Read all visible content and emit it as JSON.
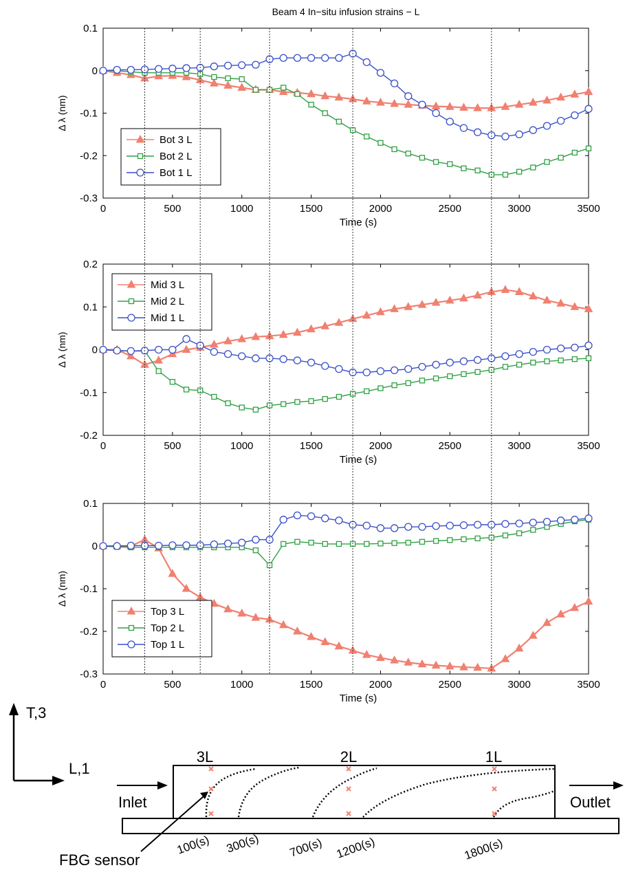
{
  "figure_title": "Beam 4 In−situ infusion strains − L",
  "colors": {
    "red": "#f08070",
    "green": "#2ea043",
    "blue": "#3a4fc8",
    "vline": "#333333"
  },
  "vlines": [
    300,
    700,
    1200,
    1800,
    2800
  ],
  "chart_data": [
    {
      "type": "line",
      "ylabel": "Δ λ (nm)",
      "xlabel": "Time (s)",
      "xlim": [
        0,
        3500
      ],
      "ylim": [
        -0.3,
        0.1
      ],
      "xticks": [
        0,
        500,
        1000,
        1500,
        2000,
        2500,
        3000,
        3500
      ],
      "yticks": [
        -0.3,
        -0.2,
        -0.1,
        0,
        0.1
      ],
      "legend_position": "left",
      "x": [
        0,
        100,
        200,
        300,
        400,
        500,
        600,
        700,
        800,
        900,
        1000,
        1100,
        1200,
        1300,
        1400,
        1500,
        1600,
        1700,
        1800,
        1900,
        2000,
        2100,
        2200,
        2300,
        2400,
        2500,
        2600,
        2700,
        2800,
        2900,
        3000,
        3100,
        3200,
        3300,
        3400,
        3500
      ],
      "series": [
        {
          "name": "Bot 3 L",
          "color": "red",
          "marker": "triangle",
          "values": [
            0,
            -0.005,
            -0.01,
            -0.018,
            -0.013,
            -0.012,
            -0.015,
            -0.022,
            -0.03,
            -0.035,
            -0.04,
            -0.045,
            -0.045,
            -0.05,
            -0.052,
            -0.055,
            -0.06,
            -0.063,
            -0.067,
            -0.072,
            -0.075,
            -0.078,
            -0.08,
            -0.082,
            -0.084,
            -0.085,
            -0.087,
            -0.088,
            -0.088,
            -0.085,
            -0.08,
            -0.075,
            -0.07,
            -0.063,
            -0.056,
            -0.05
          ]
        },
        {
          "name": "Bot 2 L",
          "color": "green",
          "marker": "square",
          "values": [
            0,
            0,
            -0.003,
            -0.005,
            -0.005,
            -0.005,
            -0.005,
            -0.008,
            -0.015,
            -0.018,
            -0.02,
            -0.045,
            -0.045,
            -0.04,
            -0.055,
            -0.08,
            -0.1,
            -0.12,
            -0.14,
            -0.155,
            -0.17,
            -0.185,
            -0.195,
            -0.205,
            -0.215,
            -0.22,
            -0.23,
            -0.235,
            -0.245,
            -0.245,
            -0.238,
            -0.228,
            -0.215,
            -0.205,
            -0.193,
            -0.183
          ]
        },
        {
          "name": "Bot 1 L",
          "color": "blue",
          "marker": "circle",
          "values": [
            0,
            0.002,
            0.002,
            0.003,
            0.004,
            0.005,
            0.006,
            0.007,
            0.01,
            0.012,
            0.013,
            0.014,
            0.027,
            0.03,
            0.03,
            0.03,
            0.03,
            0.03,
            0.04,
            0.02,
            -0.005,
            -0.03,
            -0.06,
            -0.08,
            -0.1,
            -0.12,
            -0.135,
            -0.145,
            -0.152,
            -0.155,
            -0.15,
            -0.14,
            -0.13,
            -0.118,
            -0.105,
            -0.09
          ]
        }
      ]
    },
    {
      "type": "line",
      "ylabel": "Δ λ (nm)",
      "xlabel": "Time (s)",
      "xlim": [
        0,
        3500
      ],
      "ylim": [
        -0.2,
        0.2
      ],
      "xticks": [
        0,
        500,
        1000,
        1500,
        2000,
        2500,
        3000,
        3500
      ],
      "yticks": [
        -0.2,
        -0.1,
        0,
        0.1,
        0.2
      ],
      "legend_position": "top-left",
      "x": [
        0,
        100,
        200,
        300,
        400,
        500,
        600,
        700,
        800,
        900,
        1000,
        1100,
        1200,
        1300,
        1400,
        1500,
        1600,
        1700,
        1800,
        1900,
        2000,
        2100,
        2200,
        2300,
        2400,
        2500,
        2600,
        2700,
        2800,
        2900,
        3000,
        3100,
        3200,
        3300,
        3400,
        3500
      ],
      "series": [
        {
          "name": "Mid 3 L",
          "color": "red",
          "marker": "triangle",
          "values": [
            0,
            0,
            -0.015,
            -0.035,
            -0.025,
            -0.01,
            0,
            0.005,
            0.012,
            0.02,
            0.025,
            0.03,
            0.032,
            0.035,
            0.04,
            0.048,
            0.055,
            0.063,
            0.072,
            0.08,
            0.088,
            0.095,
            0.1,
            0.105,
            0.11,
            0.115,
            0.12,
            0.127,
            0.135,
            0.14,
            0.135,
            0.125,
            0.115,
            0.108,
            0.1,
            0.095
          ]
        },
        {
          "name": "Mid 2 L",
          "color": "green",
          "marker": "square",
          "values": [
            0,
            -0.002,
            -0.003,
            -0.003,
            -0.05,
            -0.075,
            -0.093,
            -0.095,
            -0.11,
            -0.125,
            -0.135,
            -0.14,
            -0.13,
            -0.127,
            -0.122,
            -0.12,
            -0.115,
            -0.11,
            -0.103,
            -0.097,
            -0.09,
            -0.083,
            -0.078,
            -0.072,
            -0.067,
            -0.062,
            -0.057,
            -0.052,
            -0.047,
            -0.04,
            -0.035,
            -0.03,
            -0.027,
            -0.025,
            -0.022,
            -0.02
          ]
        },
        {
          "name": "Mid 1 L",
          "color": "blue",
          "marker": "circle",
          "values": [
            0,
            -0.002,
            -0.003,
            -0.002,
            0,
            0,
            0.025,
            0.01,
            -0.005,
            -0.01,
            -0.015,
            -0.02,
            -0.02,
            -0.022,
            -0.025,
            -0.03,
            -0.038,
            -0.045,
            -0.053,
            -0.053,
            -0.05,
            -0.048,
            -0.045,
            -0.04,
            -0.035,
            -0.03,
            -0.027,
            -0.024,
            -0.02,
            -0.015,
            -0.01,
            -0.005,
            0,
            0.003,
            0.005,
            0.01
          ]
        }
      ]
    },
    {
      "type": "line",
      "ylabel": "Δ λ (nm)",
      "xlabel": "Time (s)",
      "xlim": [
        0,
        3500
      ],
      "ylim": [
        -0.3,
        0.1
      ],
      "xticks": [
        0,
        500,
        1000,
        1500,
        2000,
        2500,
        3000,
        3500
      ],
      "yticks": [
        -0.3,
        -0.2,
        -0.1,
        0,
        0.1
      ],
      "legend_position": "bottom-left",
      "x": [
        0,
        100,
        200,
        300,
        400,
        500,
        600,
        700,
        800,
        900,
        1000,
        1100,
        1200,
        1300,
        1400,
        1500,
        1600,
        1700,
        1800,
        1900,
        2000,
        2100,
        2200,
        2300,
        2400,
        2500,
        2600,
        2700,
        2800,
        2900,
        3000,
        3100,
        3200,
        3300,
        3400,
        3500
      ],
      "series": [
        {
          "name": "Top 3 L",
          "color": "red",
          "marker": "triangle",
          "values": [
            0,
            0,
            0,
            0.015,
            -0.005,
            -0.065,
            -0.1,
            -0.12,
            -0.135,
            -0.148,
            -0.158,
            -0.168,
            -0.172,
            -0.185,
            -0.2,
            -0.213,
            -0.225,
            -0.235,
            -0.245,
            -0.255,
            -0.262,
            -0.268,
            -0.273,
            -0.277,
            -0.28,
            -0.282,
            -0.284,
            -0.285,
            -0.287,
            -0.265,
            -0.24,
            -0.21,
            -0.18,
            -0.16,
            -0.145,
            -0.13
          ]
        },
        {
          "name": "Top 2 L",
          "color": "green",
          "marker": "square",
          "values": [
            0,
            -0.002,
            -0.003,
            -0.003,
            -0.003,
            -0.003,
            -0.003,
            -0.003,
            -0.003,
            -0.003,
            -0.003,
            -0.01,
            -0.045,
            0.005,
            0.01,
            0.008,
            0.005,
            0.005,
            0.005,
            0.005,
            0.006,
            0.007,
            0.008,
            0.01,
            0.012,
            0.014,
            0.016,
            0.018,
            0.02,
            0.025,
            0.03,
            0.038,
            0.045,
            0.052,
            0.058,
            0.062
          ]
        },
        {
          "name": "Top 1 L",
          "color": "blue",
          "marker": "circle",
          "values": [
            0,
            0,
            0.001,
            0.001,
            0.001,
            0.002,
            0.002,
            0.002,
            0.004,
            0.006,
            0.008,
            0.015,
            0.015,
            0.062,
            0.072,
            0.07,
            0.065,
            0.06,
            0.05,
            0.048,
            0.042,
            0.042,
            0.045,
            0.045,
            0.047,
            0.048,
            0.049,
            0.05,
            0.05,
            0.052,
            0.053,
            0.055,
            0.057,
            0.06,
            0.062,
            0.065
          ]
        }
      ]
    }
  ],
  "diagram": {
    "axis_vertical_label": "T,3",
    "axis_horizontal_label": "L,1",
    "inlet_label": "Inlet",
    "outlet_label": "Outlet",
    "sensor_label": "FBG sensor",
    "columns": [
      "3L",
      "2L",
      "1L"
    ],
    "flow_times": [
      "100(s)",
      "300(s)",
      "700(s)",
      "1200(s)",
      "1800(s)"
    ]
  }
}
